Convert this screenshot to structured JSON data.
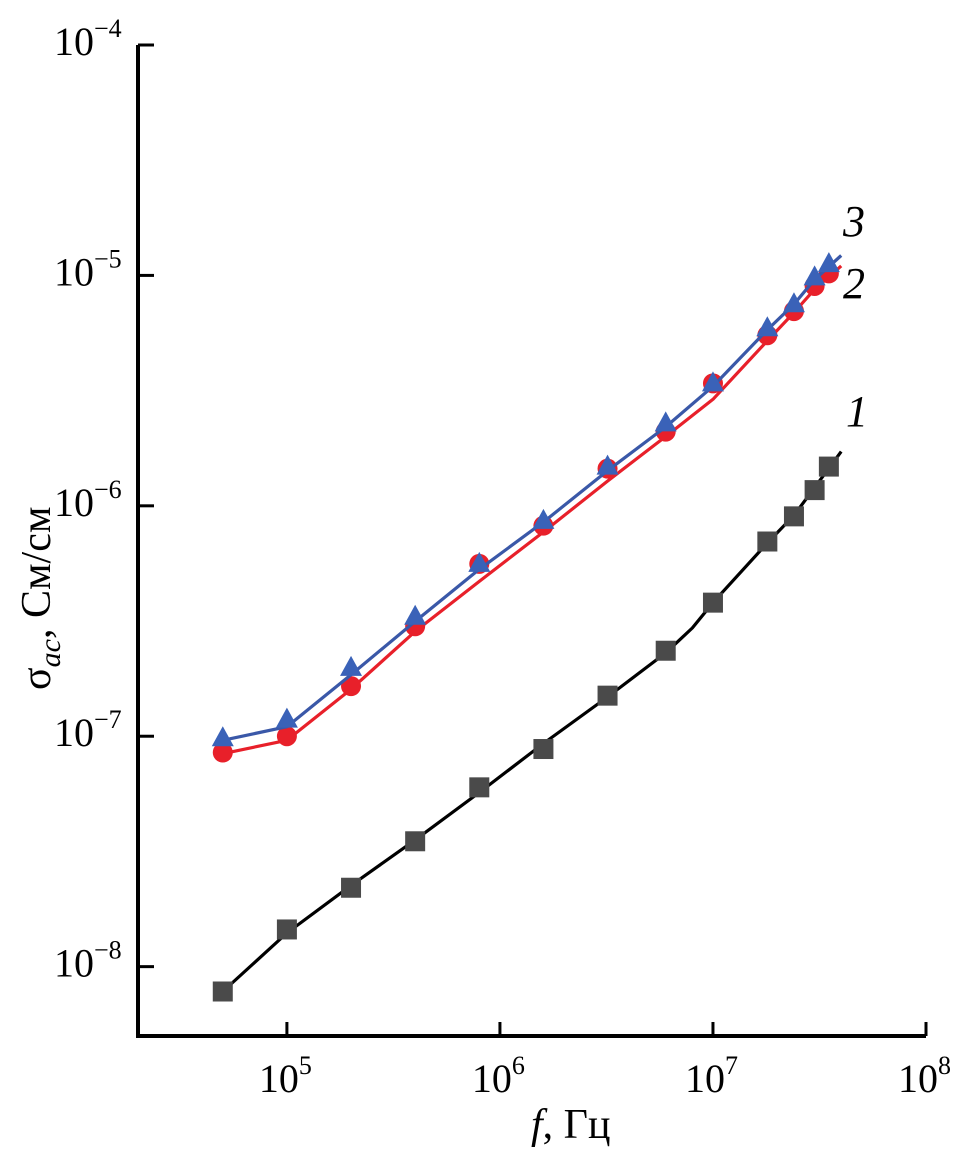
{
  "chart_data": {
    "type": "line",
    "xscale": "log",
    "yscale": "log",
    "xlim": [
      20000,
      100000000
    ],
    "ylim": [
      5e-09,
      0.0001
    ],
    "xlabel": {
      "italic": "f",
      "rest": ", Гц"
    },
    "ylabel": {
      "symbol": "σ",
      "subscript": "ac",
      "rest": ", См/см"
    },
    "x_ticks": [
      {
        "base": "10",
        "exp": "5",
        "value": 100000
      },
      {
        "base": "10",
        "exp": "6",
        "value": 1000000
      },
      {
        "base": "10",
        "exp": "7",
        "value": 10000000
      },
      {
        "base": "10",
        "exp": "8",
        "value": 100000000
      }
    ],
    "y_ticks": [
      {
        "base": "10",
        "exp": "−8",
        "value": 1e-08
      },
      {
        "base": "10",
        "exp": "−7",
        "value": 1e-07
      },
      {
        "base": "10",
        "exp": "−6",
        "value": 1e-06
      },
      {
        "base": "10",
        "exp": "−5",
        "value": 1e-05
      },
      {
        "base": "10",
        "exp": "−4",
        "value": 0.0001
      }
    ],
    "grid": false,
    "series": [
      {
        "label": "1",
        "color": "#000000",
        "marker": "square",
        "marker_color": "#4a4a4a",
        "x": [
          50000,
          100000,
          200000,
          400000,
          800000,
          1600000,
          3200000,
          6000000,
          10000000,
          18000000,
          24000000,
          30000000,
          35000000
        ],
        "y": [
          7.8e-09,
          1.45e-08,
          2.2e-08,
          3.5e-08,
          6e-08,
          8.8e-08,
          1.5e-07,
          2.35e-07,
          3.8e-07,
          7e-07,
          9e-07,
          1.17e-06,
          1.48e-06
        ],
        "line_x": [
          50000,
          100000,
          200000,
          400000,
          800000,
          1600000,
          3200000,
          6000000,
          8000000,
          10000000,
          18000000,
          24000000,
          30000000,
          40000000
        ],
        "line_y": [
          7.8e-09,
          1.4e-08,
          2.25e-08,
          3.55e-08,
          5.7e-08,
          9.3e-08,
          1.48e-07,
          2.3e-07,
          2.95e-07,
          3.8e-07,
          6.9e-07,
          9.1e-07,
          1.2e-06,
          1.72e-06
        ]
      },
      {
        "label": "2",
        "color": "#e8202a",
        "marker": "circle",
        "marker_color": "#e8202a",
        "x": [
          50000,
          100000,
          200000,
          400000,
          800000,
          1600000,
          3200000,
          6000000,
          10000000,
          18000000,
          24000000,
          30000000,
          35000000
        ],
        "y": [
          8.5e-08,
          1e-07,
          1.65e-07,
          3e-07,
          5.6e-07,
          8.2e-07,
          1.45e-06,
          2.1e-06,
          3.4e-06,
          5.5e-06,
          7e-06,
          9e-06,
          1.02e-05
        ],
        "line_x": [
          50000,
          100000,
          200000,
          400000,
          800000,
          1600000,
          3200000,
          6000000,
          10000000,
          18000000,
          24000000,
          30000000,
          40000000
        ],
        "line_y": [
          8.4e-08,
          9.6e-08,
          1.6e-07,
          2.85e-07,
          4.7e-07,
          7.7e-07,
          1.28e-06,
          2e-06,
          2.9e-06,
          5.2e-06,
          6.9e-06,
          8.7e-06,
          1.1e-05
        ]
      },
      {
        "label": "3",
        "color": "#3a58a8",
        "marker": "triangle",
        "marker_color": "#3a62b8",
        "x": [
          50000,
          100000,
          200000,
          400000,
          800000,
          1600000,
          3200000,
          6000000,
          10000000,
          18000000,
          24000000,
          30000000,
          35000000
        ],
        "y": [
          9.8e-08,
          1.18e-07,
          1.98e-07,
          3.3e-07,
          5.6e-07,
          8.6e-07,
          1.48e-06,
          2.28e-06,
          3.4e-06,
          5.9e-06,
          7.5e-06,
          9.8e-06,
          1.12e-05
        ],
        "line_x": [
          50000,
          100000,
          200000,
          400000,
          800000,
          1600000,
          3200000,
          6000000,
          10000000,
          18000000,
          24000000,
          30000000,
          40000000
        ],
        "line_y": [
          9.6e-08,
          1.1e-07,
          1.85e-07,
          3.15e-07,
          5.3e-07,
          8.5e-07,
          1.42e-06,
          2.2e-06,
          3.3e-06,
          5.8e-06,
          7.5e-06,
          9.6e-06,
          1.22e-05
        ]
      }
    ]
  }
}
